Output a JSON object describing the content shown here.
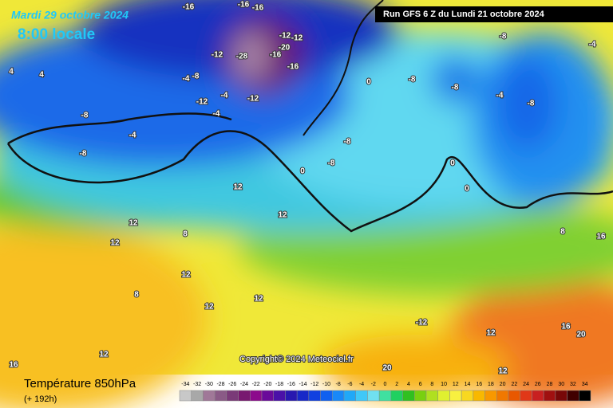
{
  "header": {
    "date": "Mardi 29 octobre 2024",
    "time": "8:00 locale",
    "run": "Run GFS 6 Z du Lundi 21 octobre 2024"
  },
  "copyright": "Copyright© 2024 Meteociel.fr",
  "legend": {
    "title": "Température 850hPa",
    "lead": "(+ 192h)",
    "ticks": [
      -34,
      -32,
      -30,
      -28,
      -26,
      -24,
      -22,
      -20,
      -18,
      -16,
      -14,
      -12,
      -10,
      -8,
      -6,
      -4,
      -2,
      0,
      2,
      4,
      6,
      8,
      10,
      12,
      14,
      16,
      18,
      20,
      22,
      24,
      26,
      28,
      30,
      32,
      34
    ],
    "colors": [
      "#c8c8c8",
      "#a8a8a8",
      "#a07898",
      "#8a5a86",
      "#7a3a78",
      "#781870",
      "#8c0a8c",
      "#6a0a9a",
      "#4a10a8",
      "#2818b0",
      "#1828c8",
      "#1040e0",
      "#1060f0",
      "#1888f8",
      "#20a8f8",
      "#40c8f8",
      "#70e0f0",
      "#40e0a0",
      "#20d060",
      "#30c020",
      "#78d010",
      "#b0e020",
      "#e0f030",
      "#f8f040",
      "#f8d820",
      "#f8b800",
      "#f89800",
      "#f07800",
      "#e85800",
      "#e03818",
      "#c82020",
      "#a01010",
      "#780808",
      "#400000",
      "#000000"
    ]
  },
  "map": {
    "labels": [
      -16,
      -16,
      -16,
      -12,
      -12,
      -20,
      -28,
      -16,
      -16,
      -12,
      -8,
      -4,
      -12,
      -4,
      -12,
      -4,
      -8,
      -4,
      -8,
      -8,
      -4,
      -8,
      -8,
      0,
      -4,
      -8,
      -8,
      -8,
      0,
      0,
      0,
      12,
      12,
      12,
      8,
      12,
      12,
      8,
      12,
      12,
      -12,
      12,
      16,
      20,
      12,
      20,
      12,
      16,
      16,
      8,
      4,
      4
    ]
  }
}
